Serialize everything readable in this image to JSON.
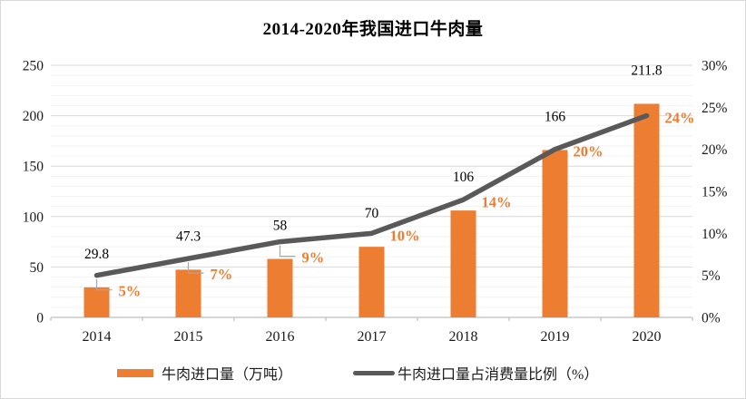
{
  "title": "2014-2020年我国进口牛肉量",
  "colors": {
    "bar": "#ED7D31",
    "line": "#595959",
    "pct_label": "#ED7D31",
    "value_label": "#000000",
    "axis_label": "#1a1a1a",
    "grid_major": "#D9D9D9",
    "grid_minor": "#F2F2F2",
    "axis_line": "#BFBFBF",
    "leader": "#A6A6A6",
    "frame_border": "#D9D9D9",
    "background": "#FFFFFF"
  },
  "chart_data": {
    "type": "bar",
    "subtype": "combo-bar-line-dual-axis",
    "title": "2014-2020年我国进口牛肉量",
    "categories": [
      "2014",
      "2015",
      "2016",
      "2017",
      "2018",
      "2019",
      "2020"
    ],
    "series": [
      {
        "name": "牛肉进口量（万吨）",
        "type": "bar",
        "axis": "left",
        "color": "#ED7D31",
        "values": [
          29.8,
          47.3,
          58,
          70,
          106,
          166,
          211.8
        ],
        "labels": [
          "29.8",
          "47.3",
          "58",
          "70",
          "106",
          "166",
          "211.8"
        ]
      },
      {
        "name": "牛肉进口量占消费量比例（%）",
        "type": "line",
        "axis": "right",
        "color": "#595959",
        "values": [
          5,
          7,
          9,
          10,
          14,
          20,
          24
        ],
        "labels": [
          "5%",
          "7%",
          "9%",
          "10%",
          "14%",
          "20%",
          "24%"
        ]
      }
    ],
    "left_axis": {
      "min": 0,
      "max": 250,
      "step": 50,
      "minor_step": 10,
      "ticks": [
        "0",
        "50",
        "100",
        "150",
        "200",
        "250"
      ]
    },
    "right_axis": {
      "min": 0,
      "max": 30,
      "step": 5,
      "ticks": [
        "0%",
        "5%",
        "10%",
        "15%",
        "20%",
        "25%",
        "30%"
      ]
    },
    "xlabel": "",
    "ylabel": "",
    "grid": true,
    "legend_position": "bottom"
  }
}
